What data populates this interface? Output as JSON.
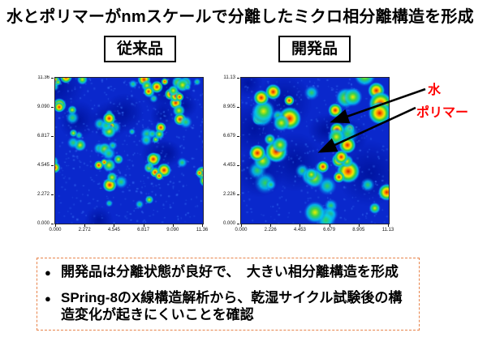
{
  "page": {
    "title": "水とポリマーがnmスケールで分離したミクロ相分離構造を形成"
  },
  "panels": {
    "conventional": {
      "label": "従来品"
    },
    "developed": {
      "label": "開発品"
    }
  },
  "annotations": {
    "water": "水",
    "polymer": "ポリマー"
  },
  "notes": {
    "bullet_char": "●",
    "bullet1": "開発品は分離状態が良好で、　大きい相分離構造を形成",
    "bullet2": "SPring-8のX線構造解析から、乾湿サイクル試験後の構造変化が起きにくいことを確認"
  },
  "colors": {
    "heat_base": "#0a28cc",
    "heat_dark": "#0014a0",
    "label_red": "#ff0000",
    "arrow": "#000000",
    "notes_border": "#e8834a"
  },
  "chart_data": [
    {
      "type": "heatmap",
      "title": "従来品",
      "colormap": "jet",
      "x_ticks": [
        "0.000",
        "2.272",
        "4.545",
        "6.817",
        "9.090",
        "11.36"
      ],
      "y_ticks": [
        "11.36",
        "9.090",
        "6.817",
        "4.545",
        "2.272",
        "0.000"
      ],
      "x_range": [
        0,
        11.36
      ],
      "y_range": [
        0,
        11.36
      ],
      "legend": "off",
      "render": {
        "seed": 7,
        "clusters": 48,
        "sub_blobs": 3,
        "spread": 18,
        "r_min": 4,
        "r_max": 9,
        "hot_boost": 0,
        "speckles": 550,
        "dark_patches": 10,
        "dark_r_min": 12,
        "dark_r_max": 34
      }
    },
    {
      "type": "heatmap",
      "title": "開発品",
      "colormap": "jet",
      "x_ticks": [
        "0.000",
        "2.226",
        "4.453",
        "6.679",
        "8.905",
        "11.13"
      ],
      "y_ticks": [
        "11.13",
        "8.905",
        "6.679",
        "4.453",
        "2.226",
        "0.000"
      ],
      "x_range": [
        0,
        11.13
      ],
      "y_range": [
        0,
        11.13
      ],
      "legend": "off",
      "render": {
        "seed": 13,
        "clusters": 17,
        "sub_blobs": 5,
        "spread": 30,
        "r_min": 6,
        "r_max": 15,
        "hot_boost": 0.15,
        "speckles": 450,
        "dark_patches": 9,
        "dark_r_min": 18,
        "dark_r_max": 48
      }
    }
  ]
}
